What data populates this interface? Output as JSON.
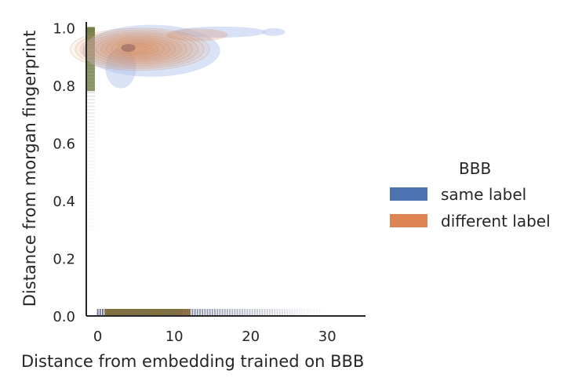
{
  "chart_data": {
    "type": "kde-density",
    "title": "",
    "xlabel": "Distance from embedding trained on BBB",
    "ylabel": "Distance from morgan fingerprint",
    "xlim": [
      -1.5,
      35
    ],
    "ylim": [
      0,
      1.02
    ],
    "xticks": [
      0,
      10,
      20,
      30
    ],
    "yticks": [
      0.0,
      0.2,
      0.4,
      0.6,
      0.8,
      1.0
    ],
    "xtick_labels": [
      "0",
      "10",
      "20",
      "30"
    ],
    "ytick_labels": [
      "0.0",
      "0.2",
      "0.4",
      "0.6",
      "0.8",
      "1.0"
    ],
    "grid": false,
    "legend": {
      "title": "BBB",
      "placement": "outside-right",
      "entries": [
        {
          "label": "same label",
          "color": "#4c72b0"
        },
        {
          "label": "different label",
          "color": "#dd8452"
        }
      ]
    },
    "series": [
      {
        "name": "same label",
        "color": "#4c72b0",
        "density_mode": {
          "x": 4,
          "y": 0.93
        },
        "x_range": [
          1,
          23
        ],
        "y_range": [
          0.78,
          0.995
        ],
        "marginal_x_range": [
          0,
          29
        ],
        "marginal_y_range": [
          0.3,
          1.0
        ]
      },
      {
        "name": "different label",
        "color": "#dd8452",
        "density_mode": {
          "x": 4,
          "y": 0.925
        },
        "x_range": [
          1.5,
          15
        ],
        "y_range": [
          0.84,
          0.99
        ],
        "marginal_x_range": [
          1,
          12
        ],
        "marginal_y_range": [
          0.85,
          1.0
        ]
      }
    ]
  }
}
